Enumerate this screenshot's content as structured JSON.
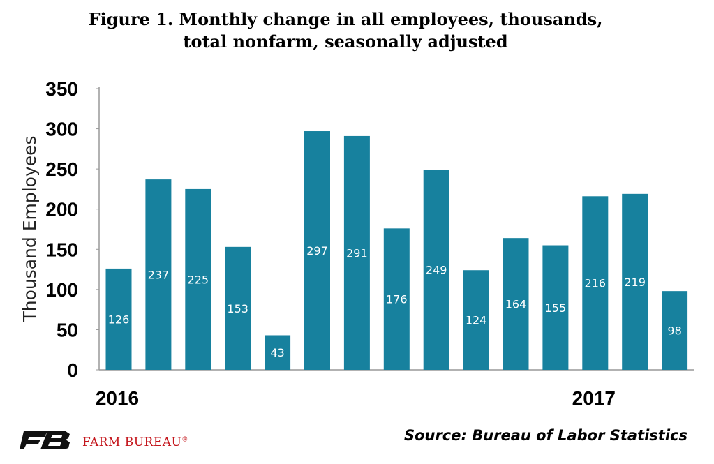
{
  "title_line1": "Figure 1. Monthly change in all employees, thousands,",
  "title_line2": "total nonfarm, seasonally adjusted",
  "source": "Source: Bureau of Labor Statistics",
  "brand": "FARM BUREAU",
  "brand_mark": "®",
  "colors": {
    "bar": "#17819e",
    "axis": "#999999",
    "brand": "#c4161c"
  },
  "chart_data": {
    "type": "bar",
    "title": "Figure 1. Monthly change in all employees, thousands, total nonfarm, seasonally adjusted",
    "ylabel": "Thousand Employees",
    "ylim": [
      0,
      350
    ],
    "yticks": [
      0,
      50,
      100,
      150,
      200,
      250,
      300,
      350
    ],
    "x_year_labels": [
      {
        "label": "2016",
        "at_index": 0
      },
      {
        "label": "2017",
        "at_index": 12
      }
    ],
    "values": [
      126,
      237,
      225,
      153,
      43,
      297,
      291,
      176,
      249,
      124,
      164,
      155,
      216,
      219,
      98
    ],
    "grid": false
  }
}
